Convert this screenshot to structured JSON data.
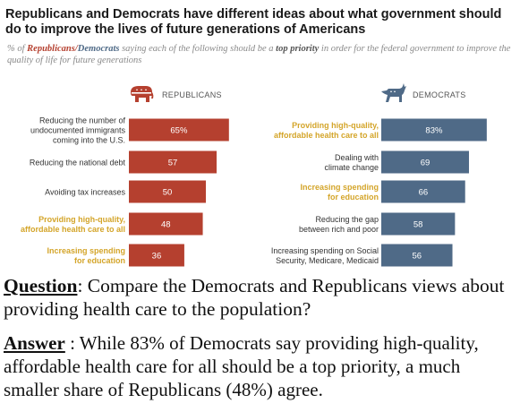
{
  "title": "Republicans and Democrats have different ideas about what government should do to improve the lives of future generations of Americans",
  "subtitle": {
    "prefix": "% of ",
    "republicans": "Republicans",
    "slash": "/",
    "democrats": "Democrats",
    "middle": " saying each of the following should be a ",
    "top_priority": "top priority",
    "suffix": " in order for the federal government to improve the quality of life for future generations"
  },
  "colors": {
    "republican": "#b5402f",
    "democrat": "#4f6a87",
    "highlight_text": "#d4a52a",
    "label_text": "#333333"
  },
  "chart_data": [
    {
      "type": "bar",
      "panel": "REPUBLICANS",
      "icon": "elephant-icon",
      "categories": [
        [
          "Reducing the number of",
          "undocumented immigrants",
          "coming into the U.S."
        ],
        [
          "Reducing the national debt"
        ],
        [
          "Avoiding tax increases"
        ],
        [
          "Providing high-quality,",
          "affordable health care to all"
        ],
        [
          "Increasing spending",
          "for education"
        ]
      ],
      "highlighted": [
        false,
        false,
        false,
        true,
        true
      ],
      "values": [
        65,
        57,
        50,
        48,
        36
      ],
      "value_labels": [
        "65%",
        "57",
        "50",
        "48",
        "36"
      ],
      "xlim": [
        0,
        100
      ]
    },
    {
      "type": "bar",
      "panel": "DEMOCRATS",
      "icon": "donkey-icon",
      "categories": [
        [
          "Providing high-quality,",
          "affordable health care to all"
        ],
        [
          "Dealing with",
          "climate change"
        ],
        [
          "Increasing spending",
          "for education"
        ],
        [
          "Reducing the gap",
          "between rich and poor"
        ],
        [
          "Increasing spending on Social",
          "Security, Medicare, Medicaid"
        ]
      ],
      "highlighted": [
        true,
        false,
        true,
        false,
        false
      ],
      "values": [
        83,
        69,
        66,
        58,
        56
      ],
      "value_labels": [
        "83%",
        "69",
        "66",
        "58",
        "56"
      ],
      "xlim": [
        0,
        100
      ]
    }
  ],
  "question": {
    "key": "Question",
    "text": ":  Compare the Democrats and Republicans views about providing health care to the population?"
  },
  "answer": {
    "key": "Answer",
    "text": " :  While 83% of Democrats say providing high-quality, affordable health care for all should be a top priority, a much smaller share of Republicans (48%) agree."
  }
}
